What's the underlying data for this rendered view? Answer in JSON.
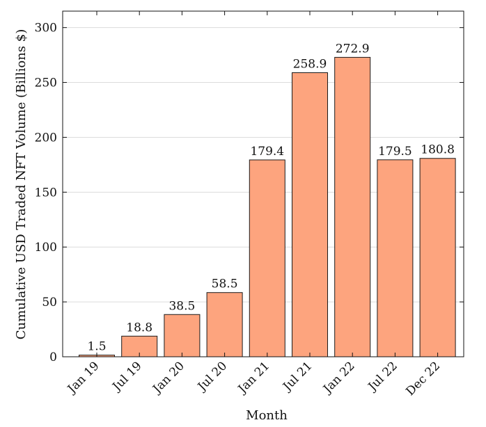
{
  "chart_data": {
    "type": "bar",
    "categories": [
      "Jan 19",
      "Jul 19",
      "Jan 20",
      "Jul 20",
      "Jan 21",
      "Jul 21",
      "Jan 22",
      "Jul 22",
      "Dec 22"
    ],
    "values": [
      1.5,
      18.8,
      38.5,
      58.5,
      179.4,
      258.9,
      272.9,
      179.5,
      180.8
    ],
    "data_labels": [
      "1.5",
      "18.8",
      "38.5",
      "58.5",
      "179.4",
      "258.9",
      "272.9",
      "179.5",
      "180.8"
    ],
    "xlabel": "Month",
    "ylabel": "Cumulative USD Traded NFT Volume (Billions $)",
    "ylim": [
      0,
      315
    ],
    "yticks": [
      0,
      50,
      100,
      150,
      200,
      250,
      300
    ],
    "grid": true,
    "colors": {
      "bar": "#fda47e",
      "edge": "#1a1a1a",
      "grid": "#dcdcdc"
    }
  }
}
